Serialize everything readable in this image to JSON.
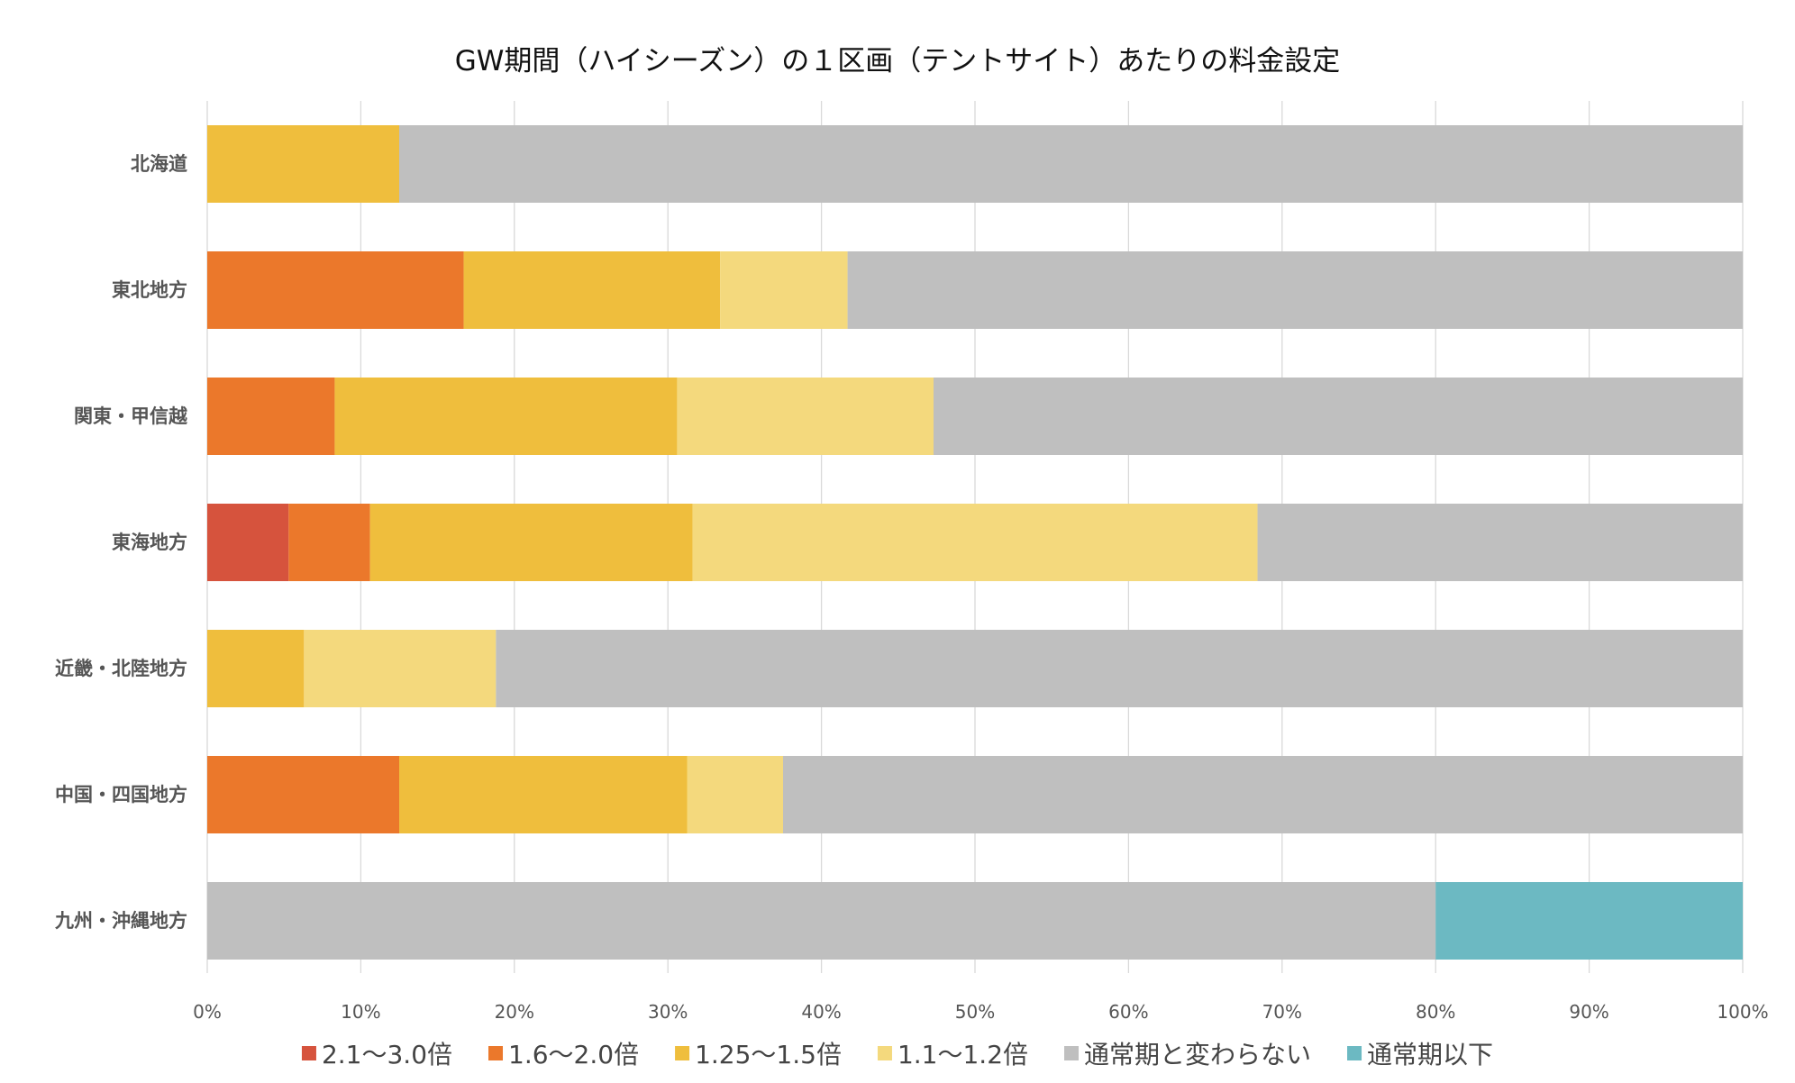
{
  "chart_data": {
    "type": "bar",
    "orientation": "horizontal",
    "stacked": "100%",
    "title": "GW期間（ハイシーズン）の１区画（テントサイト）あたりの料金設定",
    "categories": [
      "北海道",
      "東北地方",
      "関東・甲信越",
      "東海地方",
      "近畿・北陸地方",
      "中国・四国地方",
      "九州・沖縄地方"
    ],
    "series": [
      {
        "name": "2.1〜3.0倍",
        "color": "#D6533D",
        "values": [
          0,
          0,
          0,
          5.3,
          0,
          0,
          0
        ]
      },
      {
        "name": "1.6〜2.0倍",
        "color": "#EB782B",
        "values": [
          0,
          16.7,
          8.3,
          5.3,
          0,
          12.5,
          0
        ]
      },
      {
        "name": "1.25〜1.5倍",
        "color": "#EFBE3D",
        "values": [
          12.5,
          16.7,
          22.3,
          21.0,
          6.3,
          18.75,
          0
        ]
      },
      {
        "name": "1.1〜1.2倍",
        "color": "#F4D97D",
        "values": [
          0,
          8.3,
          16.7,
          36.8,
          12.5,
          6.25,
          0
        ]
      },
      {
        "name": "通常期と変わらない",
        "color": "#BFBFBF",
        "values": [
          87.5,
          58.3,
          52.7,
          31.6,
          81.2,
          62.5,
          80.0
        ]
      },
      {
        "name": "通常期以下",
        "color": "#6CB9C2",
        "values": [
          0,
          0,
          0,
          0,
          0,
          0,
          20.0
        ]
      }
    ],
    "xlim": [
      0,
      100
    ],
    "x_ticks": [
      "0%",
      "10%",
      "20%",
      "30%",
      "40%",
      "50%",
      "60%",
      "70%",
      "80%",
      "90%",
      "100%"
    ],
    "grid": true,
    "legend_position": "bottom"
  }
}
